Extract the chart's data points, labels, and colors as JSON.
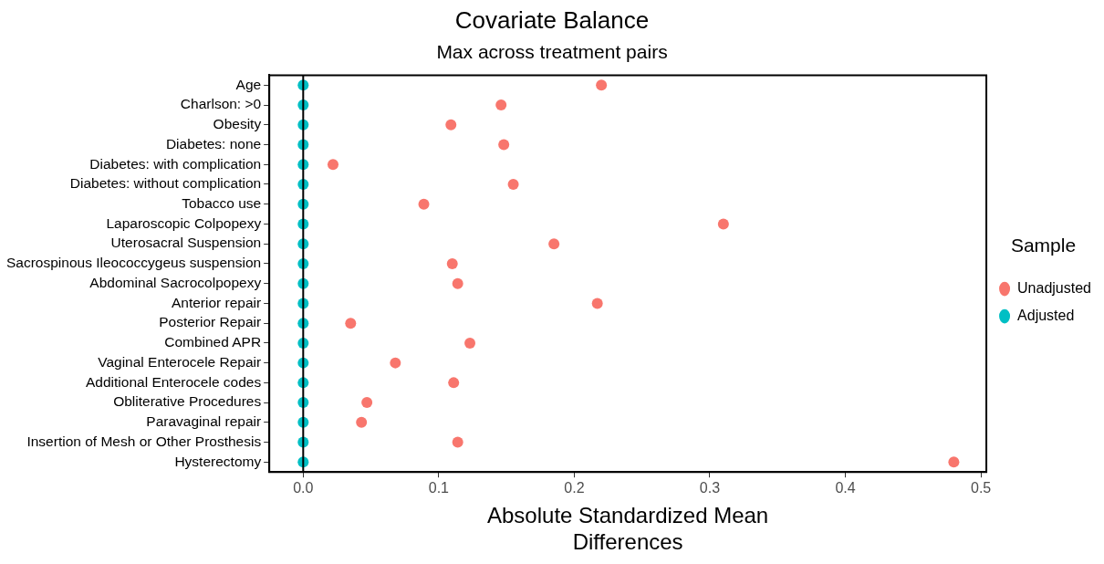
{
  "chart_data": {
    "type": "scatter",
    "title": "Covariate Balance",
    "subtitle": "Max across treatment pairs",
    "xlabel": "Absolute Standardized Mean Differences",
    "legend_title": "Sample",
    "categories": [
      "Age",
      "Charlson: >0",
      "Obesity",
      "Diabetes: none",
      "Diabetes: with complication",
      "Diabetes: without complication",
      "Tobacco use",
      "Laparoscopic Colpopexy",
      "Uterosacral Suspension",
      "Sacrospinous Ileococcygeus suspension",
      "Abdominal Sacrocolpopexy",
      "Anterior repair",
      "Posterior Repair",
      "Combined APR",
      "Vaginal Enterocele Repair",
      "Additional Enterocele codes",
      "Obliterative Procedures",
      "Paravaginal repair",
      "Insertion of Mesh or Other Prosthesis",
      "Hysterectomy"
    ],
    "orientation": "horizontal",
    "series": [
      {
        "name": "Unadjusted",
        "color": "#f8766d",
        "values": [
          0.22,
          0.146,
          0.109,
          0.148,
          0.022,
          0.155,
          0.089,
          0.31,
          0.185,
          0.11,
          0.114,
          0.217,
          0.035,
          0.123,
          0.068,
          0.111,
          0.047,
          0.043,
          0.114,
          0.48
        ]
      },
      {
        "name": "Adjusted",
        "color": "#00bfc4",
        "values": [
          0,
          0,
          0,
          0,
          0,
          0,
          0,
          0,
          0,
          0,
          0,
          0,
          0,
          0,
          0,
          0,
          0,
          0,
          0,
          0
        ]
      }
    ],
    "xlim": [
      -0.025,
      0.504
    ],
    "xticks": [
      {
        "value": 0,
        "label": "0.0"
      },
      0.1,
      0.2,
      0.3,
      0.4,
      0.5
    ],
    "ref_lines": [
      {
        "axis": "x",
        "value": 0,
        "color": "#000000"
      }
    ],
    "grid": false,
    "legend": "right",
    "marker": "circle"
  }
}
